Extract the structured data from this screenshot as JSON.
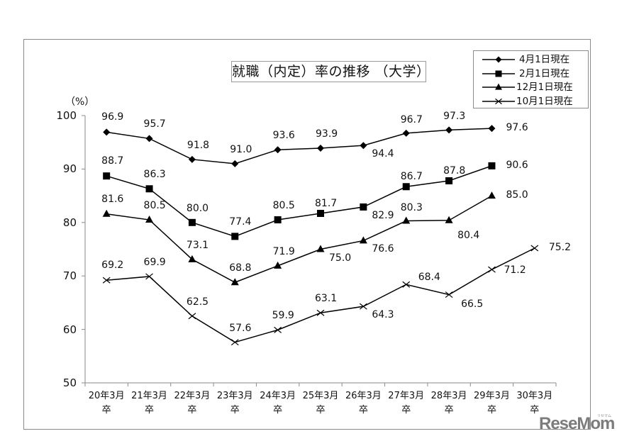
{
  "chart_data": {
    "type": "line",
    "title": "就職（内定）率の推移 （大学）",
    "ylabel": "（%）",
    "xlabel": "",
    "ylim": [
      50,
      100
    ],
    "yticks": [
      50,
      60,
      70,
      80,
      90,
      100
    ],
    "grid": false,
    "legend_position": "top-right",
    "categories": [
      "20年3月卒",
      "21年3月卒",
      "22年3月卒",
      "23年3月卒",
      "24年3月卒",
      "25年3月卒",
      "26年3月卒",
      "27年3月卒",
      "28年3月卒",
      "29年3月卒",
      "30年3月卒"
    ],
    "category_lines": [
      [
        "20年3月",
        "卒"
      ],
      [
        "21年3月",
        "卒"
      ],
      [
        "22年3月",
        "卒"
      ],
      [
        "23年3月",
        "卒"
      ],
      [
        "24年3月",
        "卒"
      ],
      [
        "25年3月",
        "卒"
      ],
      [
        "26年3月",
        "卒"
      ],
      [
        "27年3月",
        "卒"
      ],
      [
        "28年3月",
        "卒"
      ],
      [
        "29年3月",
        "卒"
      ],
      [
        "30年3月",
        "卒"
      ]
    ],
    "series": [
      {
        "name": "4月1日現在",
        "marker": "diamond",
        "values": [
          96.9,
          95.7,
          91.8,
          91.0,
          93.6,
          93.9,
          94.4,
          96.7,
          97.3,
          97.6,
          null
        ]
      },
      {
        "name": "2月1日現在",
        "marker": "square",
        "values": [
          88.7,
          86.3,
          80.0,
          77.4,
          80.5,
          81.7,
          82.9,
          86.7,
          87.8,
          90.6,
          null
        ]
      },
      {
        "name": "12月1日現在",
        "marker": "triangle",
        "values": [
          81.6,
          80.5,
          73.1,
          68.8,
          71.9,
          75.0,
          76.6,
          80.3,
          80.4,
          85.0,
          null
        ]
      },
      {
        "name": "10月1日現在",
        "marker": "x",
        "values": [
          69.2,
          69.9,
          62.5,
          57.6,
          59.9,
          63.1,
          64.3,
          68.4,
          66.5,
          71.2,
          75.2
        ]
      }
    ],
    "line_color": "#000000"
  },
  "labels": {
    "title": "就職（内定）率の推移 （大学）",
    "unit": "（%）",
    "watermark": "ReseMom",
    "watermark_small": "リセマム"
  }
}
